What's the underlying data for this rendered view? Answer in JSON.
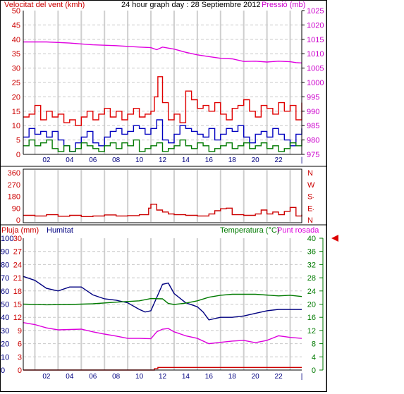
{
  "page": {
    "title": "24 hour graph day : 28 Septiembre 2012"
  },
  "chart_data": [
    {
      "type": "line",
      "panel": "wind-pressure",
      "title": "24 hour graph day : 28 Septiembre 2012",
      "left_axis_label": "Velocitat del vent (kmh)",
      "right_axis_label": "Pressió (mb)",
      "left_range": [
        0,
        50
      ],
      "left_ticks": [
        "0",
        "5",
        "10",
        "15",
        "20",
        "25",
        "30",
        "35",
        "40",
        "45",
        "50"
      ],
      "right_range": [
        975,
        1025
      ],
      "right_ticks": [
        "975",
        "980",
        "985",
        "990",
        "995",
        "1000",
        "1005",
        "1010",
        "1015",
        "1020",
        "1025"
      ],
      "x_ticks": [
        "02",
        "04",
        "06",
        "08",
        "10",
        "12",
        "14",
        "16",
        "18",
        "20",
        "22",
        "|"
      ],
      "x_range": [
        0,
        24
      ],
      "grid": true,
      "colors": {
        "gust": "#e00000",
        "average": "#0000c0",
        "low": "#007a00",
        "pressure": "#e000e0",
        "left_axis": "#cc0000",
        "right_axis": "#cc00cc",
        "hour_axis": "#000080"
      },
      "series": [
        {
          "key": "gust",
          "x": [
            0,
            0.5,
            1,
            1.5,
            2,
            2.5,
            3,
            3.5,
            4,
            4.5,
            5,
            5.5,
            6,
            6.5,
            7,
            7.5,
            8,
            8.5,
            9,
            9.5,
            10,
            10.5,
            11,
            11.3,
            11.6,
            12,
            12.5,
            13,
            13.5,
            14,
            14.5,
            15,
            15.5,
            16,
            16.5,
            17,
            17.5,
            18,
            18.5,
            19,
            19.5,
            20,
            20.5,
            21,
            21.5,
            22,
            22.5,
            23,
            23.5,
            24
          ],
          "values": [
            13,
            14,
            17,
            12,
            15,
            13,
            14,
            11,
            12,
            10,
            13,
            15,
            12,
            14,
            16,
            13,
            15,
            12,
            14,
            16,
            13,
            14,
            15,
            20,
            27,
            18,
            12,
            14,
            11,
            22,
            19,
            16,
            17,
            15,
            18,
            14,
            12,
            16,
            17,
            19,
            15,
            13,
            17,
            16,
            14,
            18,
            15,
            17,
            12,
            18
          ]
        },
        {
          "key": "average",
          "x": [
            0,
            0.5,
            1,
            1.5,
            2,
            2.5,
            3,
            3.5,
            4,
            4.5,
            5,
            5.5,
            6,
            6.5,
            7,
            7.5,
            8,
            8.5,
            9,
            9.5,
            10,
            10.5,
            11,
            11.5,
            12,
            12.5,
            13,
            13.5,
            14,
            14.5,
            15,
            15.5,
            16,
            16.5,
            17,
            17.5,
            18,
            18.5,
            19,
            19.5,
            20,
            20.5,
            21,
            21.5,
            22,
            22.5,
            23,
            23.5,
            24
          ],
          "values": [
            6,
            9,
            7,
            8,
            6,
            8,
            5,
            3,
            1,
            4,
            6,
            8,
            4,
            3,
            6,
            8,
            9,
            7,
            8,
            10,
            9,
            7,
            9,
            12,
            5,
            4,
            7,
            10,
            9,
            8,
            7,
            6,
            9,
            5,
            7,
            9,
            8,
            10,
            6,
            4,
            7,
            8,
            6,
            9,
            7,
            5,
            3,
            7,
            9
          ]
        },
        {
          "key": "low",
          "x": [
            0,
            0.5,
            1,
            1.5,
            2,
            2.5,
            3,
            3.5,
            4,
            4.5,
            5,
            5.5,
            6,
            6.5,
            7,
            7.5,
            8,
            8.5,
            9,
            9.5,
            10,
            10.5,
            11,
            11.5,
            12,
            12.5,
            13,
            13.5,
            14,
            14.5,
            15,
            15.5,
            16,
            16.5,
            17,
            17.5,
            18,
            18.5,
            19,
            19.5,
            20,
            20.5,
            21,
            21.5,
            22,
            22.5,
            23,
            23.5,
            24
          ],
          "values": [
            3,
            5,
            3,
            4,
            5,
            2,
            1,
            3,
            1,
            2,
            4,
            3,
            2,
            1,
            3,
            4,
            2,
            4,
            3,
            5,
            1,
            2,
            3,
            4,
            1,
            2,
            3,
            5,
            3,
            2,
            4,
            3,
            1,
            2,
            3,
            4,
            2,
            3,
            4,
            2,
            3,
            4,
            2,
            3,
            1,
            2,
            4,
            3,
            5
          ]
        },
        {
          "key": "pressure",
          "axis": "right",
          "x": [
            0,
            2,
            4,
            6,
            8,
            10,
            11,
            11.5,
            12,
            13,
            14,
            15,
            16,
            17,
            18,
            19,
            20,
            21,
            22,
            23,
            23.5,
            24
          ],
          "values": [
            1014.1,
            1014.1,
            1013.7,
            1013.1,
            1012.8,
            1012.3,
            1012.1,
            1011.4,
            1012.3,
            1011.6,
            1010.5,
            1009.6,
            1009.0,
            1008.4,
            1008.2,
            1007.3,
            1007.4,
            1007.1,
            1007.4,
            1007.2,
            1006.9,
            1006.8
          ]
        }
      ]
    },
    {
      "type": "line",
      "panel": "wind-direction",
      "left_range": [
        0,
        360
      ],
      "left_ticks": [
        "0",
        "90",
        "180",
        "270",
        "360"
      ],
      "right_labels": [
        "N",
        "W",
        "S",
        "E",
        "N"
      ],
      "x_range": [
        0,
        24
      ],
      "grid": true,
      "series": [
        {
          "key": "direction",
          "x": [
            0,
            1,
            2,
            3,
            4,
            5,
            6,
            7,
            8,
            9,
            10,
            10.8,
            11,
            11.5,
            12,
            12.5,
            13,
            14,
            15,
            16,
            16.5,
            17,
            17.5,
            18,
            19,
            20,
            20.5,
            21,
            21.5,
            22,
            22.5,
            23,
            23.5,
            24
          ],
          "values": [
            35,
            30,
            40,
            28,
            35,
            25,
            30,
            38,
            30,
            33,
            40,
            90,
            120,
            75,
            60,
            45,
            40,
            35,
            30,
            45,
            70,
            85,
            90,
            40,
            35,
            45,
            75,
            45,
            60,
            40,
            65,
            95,
            30,
            40
          ]
        }
      ]
    },
    {
      "type": "line",
      "panel": "rain-humidity-temperature",
      "left_label_rain": "Pluja (mm)",
      "left_label_humidity": "Humitat",
      "right_label_temperature": "Temperatura (°C)",
      "right_label_dewpoint": "Punt rosada",
      "rain_range": [
        0,
        30
      ],
      "rain_ticks": [
        "0",
        "3",
        "6",
        "9",
        "12",
        "15",
        "18",
        "21",
        "24",
        "27",
        "30"
      ],
      "humidity_range": [
        0,
        100
      ],
      "humidity_ticks": [
        "0",
        "10",
        "20",
        "30",
        "40",
        "50",
        "60",
        "70",
        "80",
        "90",
        "100"
      ],
      "temp_range": [
        0,
        40
      ],
      "temp_ticks": [
        "0",
        "4",
        "8",
        "12",
        "16",
        "20",
        "24",
        "28",
        "32",
        "36",
        "40"
      ],
      "x_range": [
        0,
        24
      ],
      "grid": true,
      "colors": {
        "rain": "#cc0000",
        "humidity": "#000080",
        "temperature": "#007a00",
        "dewpoint": "#dd00dd"
      },
      "series": [
        {
          "key": "rain",
          "axis": "rain",
          "x": [
            0,
            11,
            11.3,
            11.6,
            24
          ],
          "values": [
            0,
            0,
            0.3,
            0.6,
            0.6
          ]
        },
        {
          "key": "humidity",
          "axis": "humidity",
          "x": [
            0,
            1,
            2,
            3,
            4,
            5,
            6,
            7,
            8,
            9,
            10,
            10.5,
            11,
            11.5,
            12,
            12.5,
            13,
            14,
            15,
            15.5,
            16,
            17,
            18,
            19,
            20,
            21,
            22,
            23,
            24
          ],
          "values": [
            71,
            68,
            62,
            60,
            63,
            63,
            57,
            54,
            53,
            51,
            46,
            44,
            45,
            55,
            65,
            66,
            58,
            51,
            48,
            44,
            38,
            40,
            40,
            41,
            43,
            45,
            46,
            46,
            46
          ]
        },
        {
          "key": "temperature",
          "axis": "temp",
          "x": [
            0,
            2,
            4,
            6,
            8,
            10,
            11,
            12,
            12.5,
            13,
            14,
            15,
            16,
            17,
            18,
            20,
            22,
            23,
            24
          ],
          "values": [
            20.0,
            19.8,
            19.9,
            20.1,
            20.6,
            21.0,
            21.7,
            21.6,
            20.2,
            19.9,
            20.3,
            21.0,
            22.1,
            22.7,
            23.0,
            23.0,
            22.5,
            22.7,
            22.3
          ]
        },
        {
          "key": "dewpoint",
          "axis": "temp",
          "x": [
            0,
            1,
            2,
            3,
            4,
            5,
            6,
            7,
            8,
            9,
            10,
            11,
            11.5,
            12,
            12.5,
            13,
            14,
            15,
            16,
            17,
            18,
            19,
            20,
            21,
            22,
            23,
            24
          ],
          "values": [
            14.4,
            13.8,
            12.8,
            12.2,
            12.3,
            12.4,
            11.6,
            10.9,
            10.3,
            9.6,
            9.6,
            9.5,
            11.6,
            12.4,
            12.6,
            11.6,
            10.4,
            9.6,
            8.0,
            8.4,
            8.8,
            9.0,
            8.3,
            9.0,
            10.4,
            9.9,
            9.6
          ]
        }
      ]
    }
  ]
}
